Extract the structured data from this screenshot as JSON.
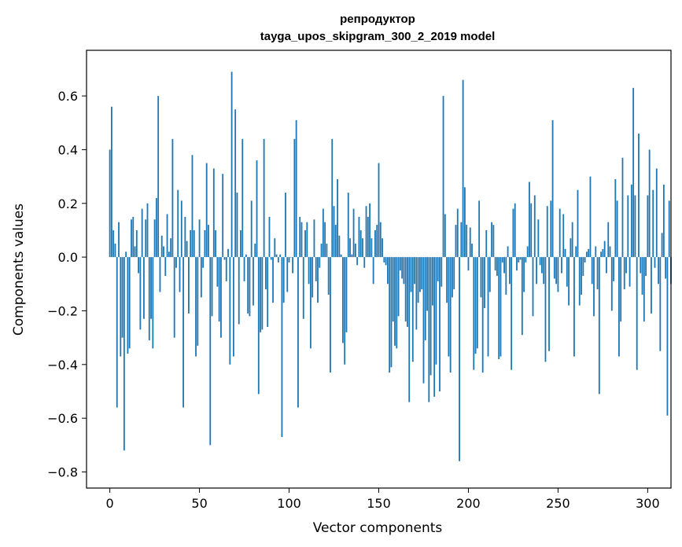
{
  "chart_data": {
    "type": "bar",
    "title": "репродуктор",
    "subtitle": "tayga_upos_skipgram_300_2_2019 model",
    "xlabel": "Vector components",
    "ylabel": "Components values",
    "xlim": [
      -13,
      313
    ],
    "ylim": [
      -0.86,
      0.77
    ],
    "x_ticks": [
      0,
      50,
      100,
      150,
      200,
      250,
      300
    ],
    "y_ticks": [
      0.6,
      0.4,
      0.2,
      0.0,
      -0.2,
      -0.4,
      -0.6,
      -0.8
    ],
    "y_tick_labels": [
      "0.6",
      "0.4",
      "0.2",
      "0.0",
      "−0.2",
      "−0.4",
      "−0.6",
      "−0.8"
    ],
    "grid": false,
    "bar_color": "#1f77b4",
    "values": [
      0.4,
      0.56,
      0.1,
      0.05,
      -0.56,
      0.13,
      -0.37,
      -0.3,
      -0.72,
      0.02,
      -0.36,
      -0.34,
      0.14,
      0.15,
      0.04,
      0.1,
      -0.06,
      -0.27,
      0.18,
      -0.23,
      0.14,
      0.2,
      -0.31,
      -0.23,
      -0.34,
      0.14,
      0.22,
      0.6,
      -0.13,
      0.08,
      0.04,
      -0.07,
      0.16,
      0.02,
      0.07,
      0.44,
      -0.3,
      -0.04,
      0.25,
      -0.13,
      0.21,
      -0.56,
      0.15,
      0.06,
      -0.21,
      0.1,
      0.38,
      0.1,
      -0.37,
      -0.33,
      0.14,
      -0.15,
      -0.04,
      0.1,
      0.35,
      0.12,
      -0.7,
      -0.22,
      0.33,
      0.1,
      -0.11,
      -0.24,
      -0.3,
      0.31,
      -0.01,
      -0.09,
      0.03,
      -0.4,
      0.69,
      -0.37,
      0.55,
      0.24,
      -0.25,
      0.1,
      0.44,
      -0.09,
      0.01,
      -0.21,
      -0.22,
      0.21,
      -0.18,
      0.05,
      0.36,
      -0.51,
      -0.28,
      -0.27,
      0.44,
      -0.12,
      -0.26,
      0.15,
      -0.01,
      -0.17,
      0.07,
      0.01,
      -0.02,
      0.01,
      -0.67,
      -0.17,
      0.24,
      -0.13,
      -0.02,
      0.0,
      -0.06,
      0.44,
      0.51,
      -0.56,
      0.15,
      0.13,
      -0.23,
      0.1,
      0.13,
      -0.1,
      -0.34,
      -0.15,
      0.14,
      -0.09,
      -0.17,
      -0.04,
      0.05,
      0.18,
      0.13,
      0.05,
      -0.14,
      -0.43,
      0.44,
      0.19,
      0.12,
      0.29,
      0.08,
      0.01,
      -0.32,
      -0.4,
      -0.28,
      0.24,
      0.07,
      0.01,
      0.18,
      0.05,
      -0.03,
      0.15,
      0.1,
      0.07,
      -0.04,
      0.19,
      0.15,
      0.2,
      0.07,
      -0.1,
      0.1,
      0.12,
      0.35,
      0.13,
      0.07,
      -0.02,
      -0.03,
      -0.1,
      -0.43,
      -0.41,
      -0.24,
      -0.33,
      -0.34,
      -0.22,
      -0.05,
      -0.08,
      -0.1,
      -0.24,
      -0.26,
      -0.54,
      -0.13,
      -0.39,
      -0.1,
      -0.27,
      -0.17,
      -0.13,
      -0.12,
      -0.47,
      -0.31,
      -0.2,
      -0.54,
      -0.44,
      -0.18,
      -0.52,
      -0.4,
      -0.09,
      -0.5,
      -0.11,
      0.6,
      0.16,
      -0.17,
      -0.37,
      -0.43,
      -0.15,
      -0.12,
      0.12,
      0.18,
      -0.76,
      0.13,
      0.66,
      0.26,
      0.12,
      -0.05,
      0.11,
      0.05,
      -0.42,
      -0.36,
      -0.34,
      0.21,
      -0.15,
      -0.43,
      -0.19,
      0.1,
      -0.37,
      -0.13,
      0.13,
      0.12,
      -0.05,
      -0.07,
      -0.38,
      -0.37,
      -0.02,
      -0.06,
      -0.14,
      0.04,
      -0.1,
      -0.42,
      0.18,
      0.2,
      -0.05,
      -0.02,
      -0.01,
      -0.29,
      -0.13,
      -0.02,
      0.04,
      0.28,
      0.2,
      -0.22,
      0.23,
      -0.1,
      0.14,
      -0.03,
      -0.06,
      -0.1,
      -0.39,
      0.19,
      -0.35,
      0.21,
      0.51,
      -0.08,
      -0.1,
      -0.13,
      0.18,
      -0.06,
      0.16,
      0.03,
      -0.11,
      -0.18,
      0.07,
      0.13,
      -0.37,
      0.04,
      0.25,
      -0.18,
      -0.14,
      -0.07,
      -0.02,
      0.02,
      0.03,
      0.3,
      -0.1,
      -0.22,
      0.04,
      -0.12,
      -0.51,
      0.02,
      0.03,
      0.06,
      -0.06,
      0.13,
      0.04,
      -0.2,
      -0.09,
      0.29,
      0.21,
      -0.37,
      -0.24,
      0.37,
      -0.12,
      -0.06,
      0.23,
      -0.11,
      0.27,
      0.63,
      0.23,
      -0.42,
      0.46,
      -0.06,
      -0.14,
      -0.24,
      -0.07,
      0.23,
      0.4,
      -0.21,
      0.25,
      -0.04,
      0.33,
      -0.1,
      -0.35,
      0.09,
      0.27,
      -0.08,
      -0.59,
      0.21,
      -0.1
    ]
  }
}
